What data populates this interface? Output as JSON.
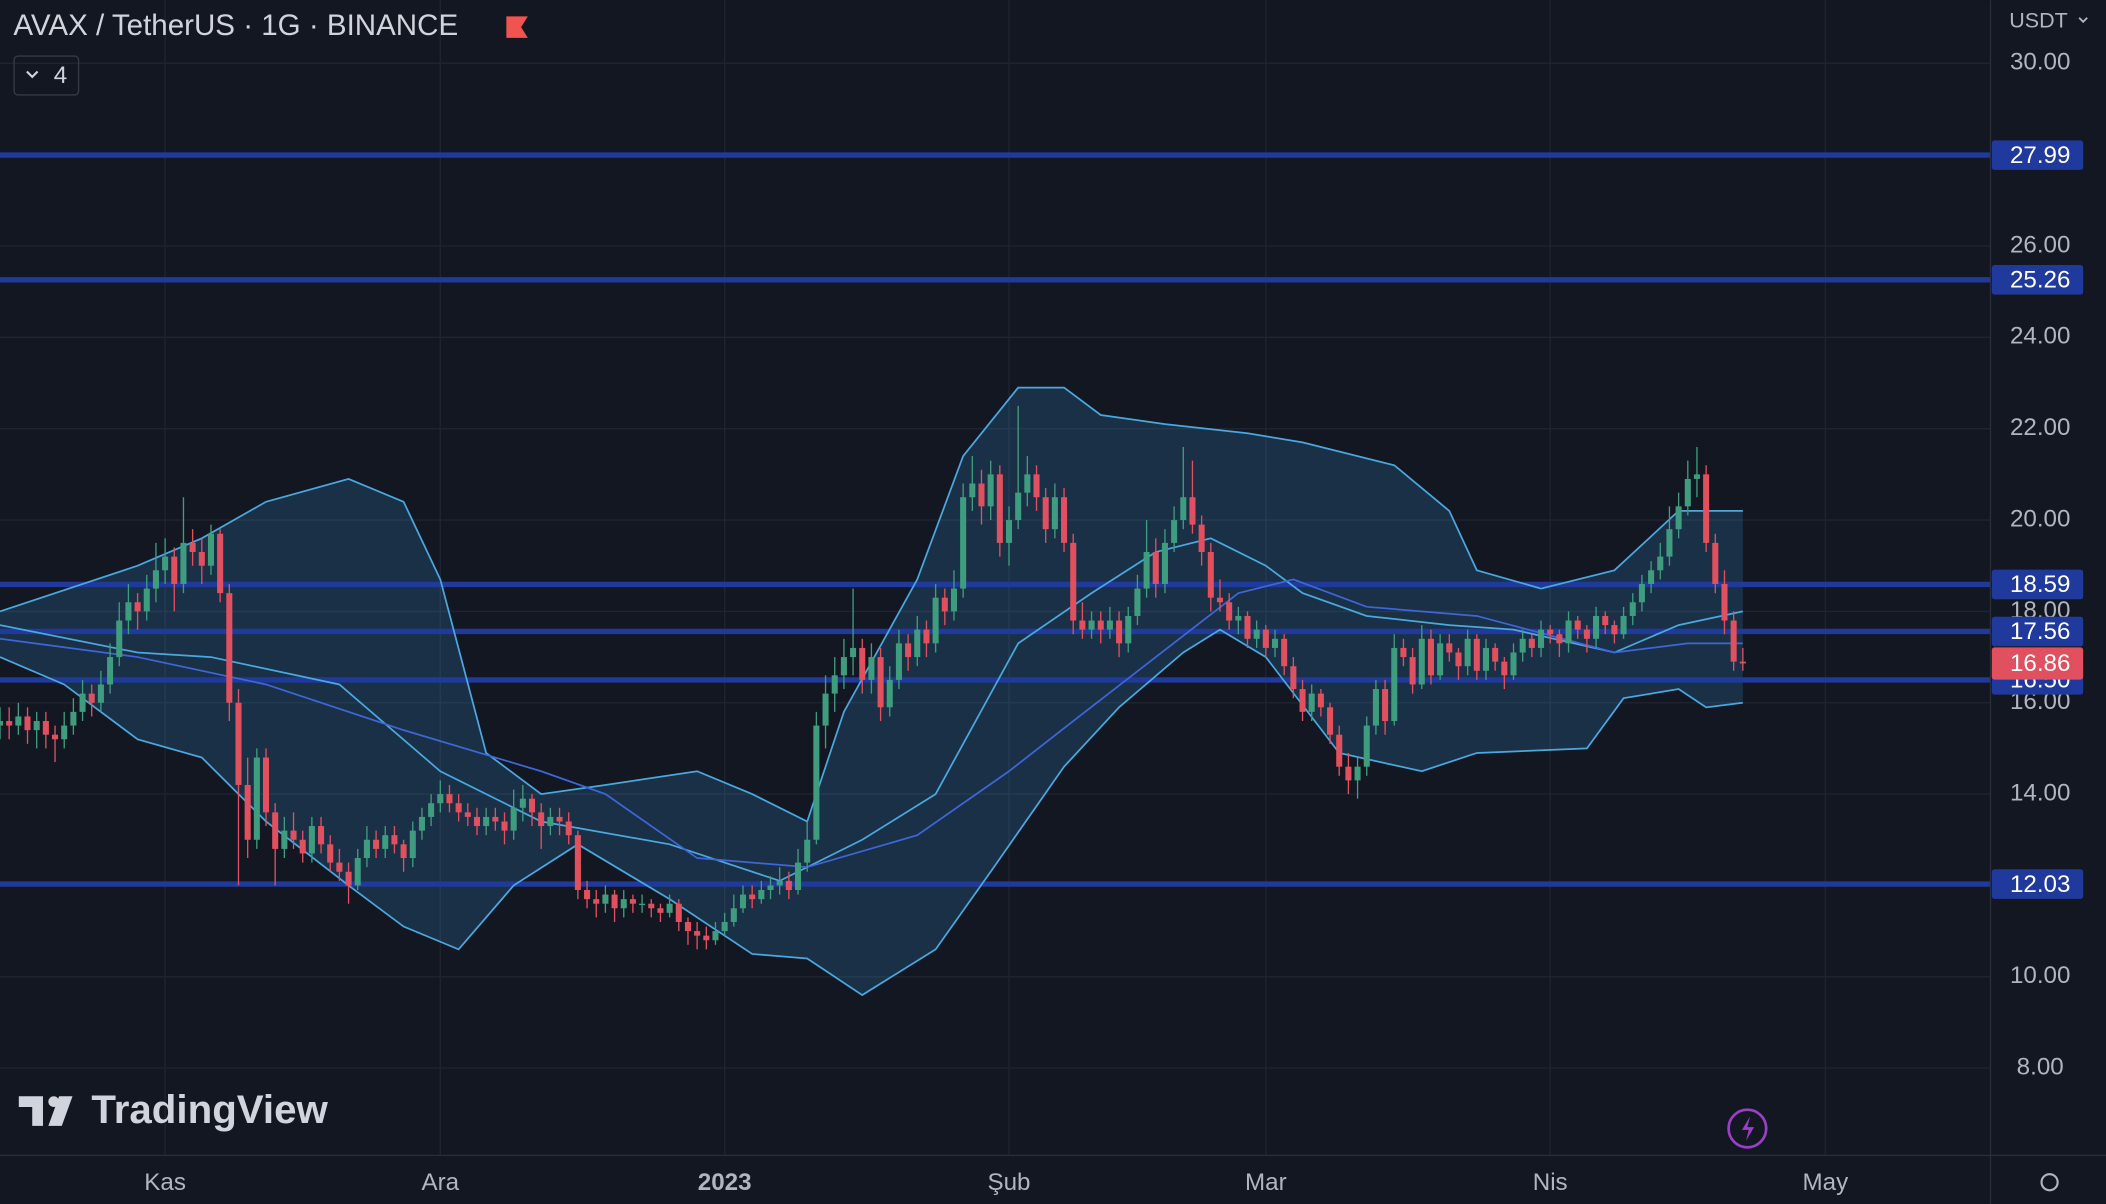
{
  "chart_data": {
    "type": "candlestick",
    "title": "AVAX / TetherUS · 1G · BINANCE",
    "indicators_shown": 4,
    "currency": "USDT",
    "watermark": "TradingView",
    "xlim": [
      0,
      217
    ],
    "ylim": [
      6.09,
      31.38
    ],
    "xticks": [
      {
        "value": 18,
        "label": "Kas"
      },
      {
        "value": 48,
        "label": "Ara"
      },
      {
        "value": 79,
        "label": "2023"
      },
      {
        "value": 110,
        "label": "Şub"
      },
      {
        "value": 138,
        "label": "Mar"
      },
      {
        "value": 169,
        "label": "Nis"
      },
      {
        "value": 199,
        "label": "May"
      }
    ],
    "yticks": [
      {
        "value": 8,
        "label": "8.00"
      },
      {
        "value": 10,
        "label": "10.00"
      },
      {
        "value": 14,
        "label": "14.00"
      },
      {
        "value": 16,
        "label": "16.00"
      },
      {
        "value": 18,
        "label": "18.00"
      },
      {
        "value": 20,
        "label": "20.00"
      },
      {
        "value": 22,
        "label": "22.00"
      },
      {
        "value": 24,
        "label": "24.00"
      },
      {
        "value": 26,
        "label": "26.00"
      },
      {
        "value": 30,
        "label": "30.00"
      }
    ],
    "grid": true,
    "up_color": "#3f9c7e",
    "down_color": "#e0505e",
    "candles": [
      [
        15.5,
        15.9,
        15.2,
        15.6
      ],
      [
        15.6,
        15.9,
        15.2,
        15.5
      ],
      [
        15.5,
        16.0,
        15.3,
        15.7
      ],
      [
        15.7,
        15.9,
        15.1,
        15.4
      ],
      [
        15.4,
        15.8,
        15.0,
        15.6
      ],
      [
        15.6,
        15.8,
        15.0,
        15.3
      ],
      [
        15.3,
        15.5,
        14.7,
        15.2
      ],
      [
        15.2,
        15.8,
        15.0,
        15.5
      ],
      [
        15.5,
        16.1,
        15.3,
        15.8
      ],
      [
        15.8,
        16.5,
        15.6,
        16.2
      ],
      [
        16.2,
        16.4,
        15.7,
        16.0
      ],
      [
        16.0,
        16.7,
        15.8,
        16.4
      ],
      [
        16.4,
        17.3,
        16.2,
        17.0
      ],
      [
        17.0,
        18.2,
        16.8,
        17.8
      ],
      [
        17.8,
        18.6,
        17.5,
        18.2
      ],
      [
        18.2,
        18.4,
        17.6,
        18.0
      ],
      [
        18.0,
        18.8,
        17.8,
        18.5
      ],
      [
        18.5,
        19.5,
        18.2,
        18.9
      ],
      [
        18.9,
        19.6,
        18.6,
        19.2
      ],
      [
        19.2,
        19.4,
        18.0,
        18.6
      ],
      [
        18.6,
        20.5,
        18.4,
        19.5
      ],
      [
        19.5,
        19.8,
        19.0,
        19.3
      ],
      [
        19.3,
        19.6,
        18.6,
        19.0
      ],
      [
        19.0,
        19.9,
        18.8,
        19.7
      ],
      [
        19.7,
        19.8,
        18.2,
        18.4
      ],
      [
        18.4,
        18.6,
        15.6,
        16.0
      ],
      [
        16.0,
        16.3,
        12.0,
        14.2
      ],
      [
        14.2,
        14.8,
        12.6,
        13.0
      ],
      [
        13.0,
        15.0,
        12.8,
        14.8
      ],
      [
        14.8,
        15.0,
        13.3,
        13.6
      ],
      [
        13.6,
        13.8,
        12.0,
        12.8
      ],
      [
        12.8,
        13.5,
        12.6,
        13.2
      ],
      [
        13.2,
        13.6,
        12.8,
        13.0
      ],
      [
        13.0,
        13.2,
        12.5,
        12.7
      ],
      [
        12.7,
        13.5,
        12.5,
        13.3
      ],
      [
        13.3,
        13.5,
        12.7,
        12.9
      ],
      [
        12.9,
        13.1,
        12.3,
        12.5
      ],
      [
        12.5,
        12.8,
        12.1,
        12.3
      ],
      [
        12.3,
        12.5,
        11.6,
        12.0
      ],
      [
        12.0,
        12.8,
        11.9,
        12.6
      ],
      [
        12.6,
        13.3,
        12.4,
        13.0
      ],
      [
        13.0,
        13.2,
        12.6,
        12.8
      ],
      [
        12.8,
        13.3,
        12.6,
        13.1
      ],
      [
        13.1,
        13.3,
        12.7,
        12.9
      ],
      [
        12.9,
        13.0,
        12.3,
        12.6
      ],
      [
        12.6,
        13.4,
        12.4,
        13.2
      ],
      [
        13.2,
        13.7,
        13.0,
        13.5
      ],
      [
        13.5,
        14.0,
        13.3,
        13.8
      ],
      [
        13.8,
        14.3,
        13.6,
        14.0
      ],
      [
        14.0,
        14.2,
        13.6,
        13.8
      ],
      [
        13.8,
        14.0,
        13.4,
        13.6
      ],
      [
        13.6,
        13.8,
        13.3,
        13.5
      ],
      [
        13.5,
        13.7,
        13.1,
        13.3
      ],
      [
        13.3,
        13.7,
        13.1,
        13.5
      ],
      [
        13.5,
        13.7,
        13.2,
        13.4
      ],
      [
        13.4,
        13.6,
        12.9,
        13.2
      ],
      [
        13.2,
        14.1,
        13.0,
        13.7
      ],
      [
        13.7,
        14.2,
        13.4,
        13.9
      ],
      [
        13.9,
        14.0,
        13.3,
        13.6
      ],
      [
        13.6,
        13.8,
        12.8,
        13.3
      ],
      [
        13.3,
        13.7,
        13.1,
        13.5
      ],
      [
        13.5,
        13.7,
        13.1,
        13.4
      ],
      [
        13.4,
        13.6,
        12.9,
        13.1
      ],
      [
        13.1,
        13.2,
        11.7,
        11.9
      ],
      [
        11.9,
        12.1,
        11.5,
        11.7
      ],
      [
        11.7,
        11.9,
        11.3,
        11.6
      ],
      [
        11.6,
        12.0,
        11.4,
        11.8
      ],
      [
        11.8,
        11.9,
        11.2,
        11.5
      ],
      [
        11.5,
        11.9,
        11.3,
        11.7
      ],
      [
        11.7,
        11.8,
        11.4,
        11.6
      ],
      [
        11.6,
        11.8,
        11.4,
        11.6
      ],
      [
        11.6,
        11.7,
        11.3,
        11.5
      ],
      [
        11.5,
        11.6,
        11.2,
        11.4
      ],
      [
        11.4,
        11.8,
        11.3,
        11.6
      ],
      [
        11.6,
        11.7,
        11.0,
        11.2
      ],
      [
        11.2,
        11.3,
        10.7,
        11.0
      ],
      [
        11.0,
        11.2,
        10.6,
        10.9
      ],
      [
        10.9,
        11.1,
        10.6,
        10.8
      ],
      [
        10.8,
        11.2,
        10.7,
        11.0
      ],
      [
        11.0,
        11.4,
        10.9,
        11.2
      ],
      [
        11.2,
        11.8,
        11.1,
        11.5
      ],
      [
        11.5,
        12.0,
        11.4,
        11.8
      ],
      [
        11.8,
        12.0,
        11.5,
        11.7
      ],
      [
        11.7,
        12.1,
        11.6,
        11.9
      ],
      [
        11.9,
        12.2,
        11.7,
        12.0
      ],
      [
        12.0,
        12.4,
        11.8,
        12.1
      ],
      [
        12.1,
        12.3,
        11.7,
        11.9
      ],
      [
        11.9,
        12.8,
        11.8,
        12.5
      ],
      [
        12.5,
        13.4,
        12.3,
        13.0
      ],
      [
        13.0,
        15.8,
        12.9,
        15.5
      ],
      [
        15.5,
        16.6,
        15.0,
        16.2
      ],
      [
        16.2,
        17.0,
        15.8,
        16.6
      ],
      [
        16.6,
        17.4,
        16.3,
        17.0
      ],
      [
        17.0,
        18.5,
        16.6,
        17.2
      ],
      [
        17.2,
        17.4,
        16.2,
        16.5
      ],
      [
        16.5,
        17.3,
        16.2,
        17.0
      ],
      [
        17.0,
        17.2,
        15.6,
        15.9
      ],
      [
        15.9,
        16.8,
        15.7,
        16.5
      ],
      [
        16.5,
        17.6,
        16.3,
        17.3
      ],
      [
        17.3,
        17.5,
        16.7,
        17.0
      ],
      [
        17.0,
        17.9,
        16.8,
        17.6
      ],
      [
        17.6,
        17.8,
        17.0,
        17.3
      ],
      [
        17.3,
        18.6,
        17.1,
        18.3
      ],
      [
        18.3,
        18.5,
        17.7,
        18.0
      ],
      [
        18.0,
        18.9,
        17.8,
        18.5
      ],
      [
        18.5,
        20.8,
        18.3,
        20.5
      ],
      [
        20.5,
        21.4,
        20.2,
        20.8
      ],
      [
        20.8,
        21.1,
        19.9,
        20.3
      ],
      [
        20.3,
        21.3,
        20.0,
        21.0
      ],
      [
        21.0,
        21.2,
        19.2,
        19.5
      ],
      [
        19.5,
        20.3,
        19.0,
        20.0
      ],
      [
        20.0,
        22.5,
        19.8,
        20.6
      ],
      [
        20.6,
        21.4,
        20.3,
        21.0
      ],
      [
        21.0,
        21.2,
        20.2,
        20.5
      ],
      [
        20.5,
        20.7,
        19.5,
        19.8
      ],
      [
        19.8,
        20.8,
        19.6,
        20.5
      ],
      [
        20.5,
        20.7,
        19.3,
        19.5
      ],
      [
        19.5,
        19.7,
        17.5,
        17.8
      ],
      [
        17.8,
        18.2,
        17.4,
        17.6
      ],
      [
        17.6,
        18.0,
        17.4,
        17.8
      ],
      [
        17.8,
        18.0,
        17.3,
        17.6
      ],
      [
        17.6,
        18.1,
        17.4,
        17.8
      ],
      [
        17.8,
        18.0,
        17.0,
        17.3
      ],
      [
        17.3,
        18.1,
        17.1,
        17.9
      ],
      [
        17.9,
        18.8,
        17.7,
        18.5
      ],
      [
        18.5,
        20.0,
        18.3,
        19.3
      ],
      [
        19.3,
        19.6,
        18.3,
        18.6
      ],
      [
        18.6,
        19.8,
        18.4,
        19.5
      ],
      [
        19.5,
        20.3,
        19.3,
        20.0
      ],
      [
        20.0,
        21.6,
        19.8,
        20.5
      ],
      [
        20.5,
        21.3,
        19.7,
        19.9
      ],
      [
        19.9,
        20.1,
        19.0,
        19.3
      ],
      [
        19.3,
        19.5,
        18.0,
        18.3
      ],
      [
        18.3,
        18.7,
        18.0,
        18.2
      ],
      [
        18.2,
        18.4,
        17.6,
        17.8
      ],
      [
        17.8,
        18.1,
        17.5,
        17.9
      ],
      [
        17.9,
        18.0,
        17.2,
        17.4
      ],
      [
        17.4,
        17.8,
        17.2,
        17.6
      ],
      [
        17.6,
        17.7,
        17.0,
        17.2
      ],
      [
        17.2,
        17.6,
        17.0,
        17.4
      ],
      [
        17.4,
        17.5,
        16.6,
        16.8
      ],
      [
        16.8,
        17.0,
        16.1,
        16.3
      ],
      [
        16.3,
        16.5,
        15.6,
        15.8
      ],
      [
        15.8,
        16.4,
        15.6,
        16.2
      ],
      [
        16.2,
        16.3,
        15.7,
        15.9
      ],
      [
        15.9,
        16.0,
        15.1,
        15.3
      ],
      [
        15.3,
        15.5,
        14.4,
        14.6
      ],
      [
        14.6,
        14.9,
        14.0,
        14.3
      ],
      [
        14.3,
        14.8,
        13.9,
        14.6
      ],
      [
        14.6,
        15.7,
        14.4,
        15.5
      ],
      [
        15.5,
        16.5,
        15.3,
        16.3
      ],
      [
        16.3,
        16.5,
        15.3,
        15.6
      ],
      [
        15.6,
        17.5,
        15.5,
        17.2
      ],
      [
        17.2,
        17.4,
        16.8,
        17.0
      ],
      [
        17.0,
        17.2,
        16.2,
        16.4
      ],
      [
        16.4,
        17.7,
        16.3,
        17.4
      ],
      [
        17.4,
        17.6,
        16.4,
        16.6
      ],
      [
        16.6,
        17.5,
        16.5,
        17.3
      ],
      [
        17.3,
        17.5,
        16.9,
        17.1
      ],
      [
        17.1,
        17.2,
        16.5,
        16.8
      ],
      [
        16.8,
        17.6,
        16.6,
        17.4
      ],
      [
        17.4,
        17.5,
        16.5,
        16.7
      ],
      [
        16.7,
        17.4,
        16.5,
        17.2
      ],
      [
        17.2,
        17.3,
        16.7,
        16.9
      ],
      [
        16.9,
        17.0,
        16.3,
        16.6
      ],
      [
        16.6,
        17.3,
        16.5,
        17.1
      ],
      [
        17.1,
        17.6,
        16.9,
        17.4
      ],
      [
        17.4,
        17.5,
        17.0,
        17.2
      ],
      [
        17.2,
        17.8,
        17.0,
        17.6
      ],
      [
        17.6,
        17.7,
        17.3,
        17.5
      ],
      [
        17.5,
        17.6,
        17.0,
        17.3
      ],
      [
        17.3,
        18.0,
        17.1,
        17.8
      ],
      [
        17.8,
        17.9,
        17.4,
        17.6
      ],
      [
        17.6,
        17.7,
        17.1,
        17.4
      ],
      [
        17.4,
        18.1,
        17.2,
        17.9
      ],
      [
        17.9,
        18.0,
        17.5,
        17.7
      ],
      [
        17.7,
        17.8,
        17.3,
        17.5
      ],
      [
        17.5,
        18.1,
        17.4,
        17.9
      ],
      [
        17.9,
        18.4,
        17.7,
        18.2
      ],
      [
        18.2,
        18.8,
        18.0,
        18.6
      ],
      [
        18.6,
        19.1,
        18.4,
        18.9
      ],
      [
        18.9,
        19.5,
        18.7,
        19.2
      ],
      [
        19.2,
        20.3,
        19.0,
        19.8
      ],
      [
        19.8,
        20.6,
        19.6,
        20.3
      ],
      [
        20.3,
        21.3,
        20.1,
        20.9
      ],
      [
        20.9,
        21.6,
        20.5,
        21.0
      ],
      [
        21.0,
        21.2,
        19.3,
        19.5
      ],
      [
        19.5,
        19.7,
        18.4,
        18.6
      ],
      [
        18.6,
        18.9,
        17.5,
        17.8
      ],
      [
        17.8,
        18.0,
        16.7,
        16.9
      ],
      [
        16.9,
        17.2,
        16.7,
        16.86
      ]
    ],
    "indicators": [
      {
        "color": "#4aa8e0",
        "x": [
          0,
          15,
          22,
          29,
          38,
          44,
          48,
          53,
          59,
          66,
          76,
          82,
          88,
          92,
          100,
          105,
          111,
          116,
          120,
          127,
          136,
          142,
          152,
          158,
          161,
          168,
          176,
          183,
          190
        ],
        "values": [
          18.0,
          19.0,
          19.6,
          20.4,
          20.9,
          20.4,
          18.7,
          14.9,
          14.0,
          14.2,
          14.5,
          14.0,
          13.4,
          15.8,
          18.7,
          21.4,
          22.9,
          22.9,
          22.3,
          22.1,
          21.9,
          21.7,
          21.2,
          20.2,
          18.9,
          18.5,
          18.9,
          20.2,
          20.2
        ]
      },
      {
        "color": "#4aa8e0",
        "x": [
          0,
          7,
          15,
          22,
          29,
          38,
          44,
          50,
          56,
          63,
          73,
          82,
          88,
          94,
          102,
          108,
          116,
          122,
          129,
          133,
          138,
          146,
          155,
          161,
          173,
          177,
          183,
          186,
          190
        ],
        "values": [
          17.0,
          16.4,
          15.2,
          14.8,
          13.4,
          12.0,
          11.1,
          10.6,
          12.0,
          12.9,
          11.7,
          10.5,
          10.4,
          9.6,
          10.6,
          12.3,
          14.6,
          15.9,
          17.1,
          17.6,
          17.0,
          14.9,
          14.5,
          14.9,
          15.0,
          16.1,
          16.3,
          15.9,
          16.0
        ]
      },
      {
        "color": "#4aa8e0",
        "x": [
          0,
          15,
          23,
          37,
          48,
          59,
          73,
          85,
          94,
          102,
          111,
          119,
          126,
          132,
          138,
          142,
          149,
          158,
          165,
          176,
          183,
          190
        ],
        "values": [
          17.7,
          17.1,
          17.0,
          16.4,
          14.5,
          13.4,
          12.9,
          12.1,
          13.0,
          14.0,
          17.3,
          18.4,
          19.3,
          19.6,
          19.0,
          18.4,
          17.9,
          17.7,
          17.6,
          17.1,
          17.7,
          18.0
        ]
      },
      {
        "color": "#3d66d9",
        "x": [
          0,
          15,
          29,
          44,
          59,
          66,
          76,
          88,
          100,
          110,
          117,
          126,
          135,
          141,
          149,
          161,
          176,
          184,
          190
        ],
        "values": [
          17.4,
          17.0,
          16.4,
          15.4,
          14.5,
          14.0,
          12.6,
          12.4,
          13.1,
          14.5,
          15.6,
          17.0,
          18.4,
          18.7,
          18.1,
          17.9,
          17.1,
          17.3,
          17.3
        ]
      }
    ],
    "band_fill": "rgba(56,140,200,0.22)",
    "levels": [
      27.99,
      25.26,
      18.59,
      17.56,
      {
        "value": 16.5,
        "label": "16.50"
      },
      12.03
    ],
    "level_color": "#1f3a9c",
    "last_price": 16.86
  }
}
